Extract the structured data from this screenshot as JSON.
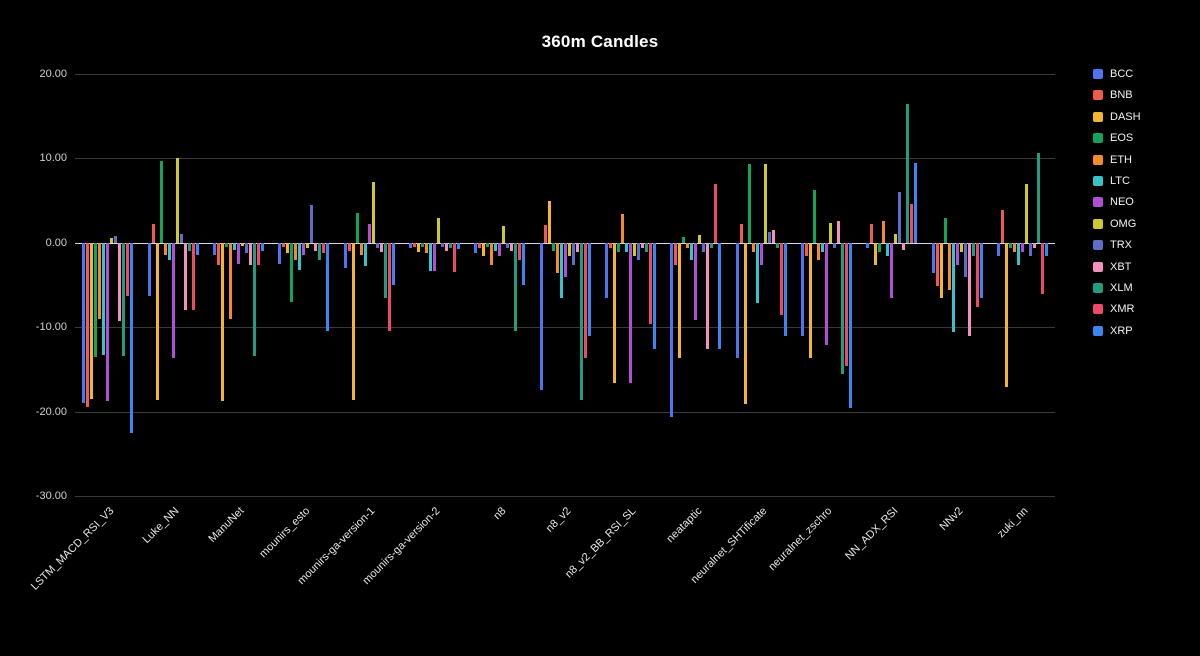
{
  "chart_data": {
    "type": "bar",
    "title": "360m Candles",
    "xlabel": "",
    "ylabel": "",
    "ylim": [
      -30,
      20
    ],
    "yticks": [
      20,
      10,
      0,
      -10,
      -20,
      -30
    ],
    "ytick_labels": [
      "20.00",
      "10.00",
      "0.00",
      "-10.00",
      "-20.00",
      "-30.00"
    ],
    "grid": true,
    "legend_position": "right",
    "background": "#000000",
    "gridline_color": "#3a3a3a",
    "zero_line_color": "#d9d9d9",
    "categories": [
      "LSTM_MACD_RSI_V3",
      "Luke_NN",
      "ManuNet",
      "mounirs_esto",
      "mounirs-ga-version-1",
      "mounirs-ga-version-2",
      "n8",
      "n8_v2",
      "n8_v2_BB_RSI_SL",
      "neataptic",
      "neuralnet_SHTificate",
      "neuralnet_zschro",
      "NN_ADX_RSI",
      "NNv2",
      "zuki_nn"
    ],
    "series": [
      {
        "name": "BCC",
        "color": "#4F74F2",
        "values": [
          -19.0,
          -6.3,
          -1.5,
          -2.5,
          -3.0,
          -0.6,
          -1.2,
          -17.5,
          -6.6,
          -20.6,
          -13.6,
          -11.1,
          -0.6,
          -3.6,
          -1.6
        ]
      },
      {
        "name": "BNB",
        "color": "#EF5B4C",
        "values": [
          -19.5,
          2.2,
          -2.6,
          -0.5,
          -1.0,
          -0.5,
          -0.6,
          2.1,
          -0.6,
          -2.6,
          2.2,
          -1.6,
          2.2,
          -5.1,
          3.9
        ]
      },
      {
        "name": "DASH",
        "color": "#F5B62E",
        "values": [
          -18.5,
          -18.6,
          -18.7,
          -1.2,
          -18.6,
          -1.1,
          -1.6,
          4.9,
          -16.6,
          -13.6,
          -19.1,
          -13.6,
          -2.6,
          -6.6,
          -17.1
        ]
      },
      {
        "name": "EOS",
        "color": "#13A45B",
        "values": [
          -13.5,
          9.7,
          -0.5,
          -7.0,
          3.5,
          -0.5,
          -0.5,
          -1.0,
          -1.1,
          0.7,
          9.4,
          6.3,
          -1.1,
          2.9,
          -0.6
        ]
      },
      {
        "name": "ETH",
        "color": "#F58A2E",
        "values": [
          -9.0,
          -1.5,
          -9.0,
          -2.0,
          -1.5,
          -1.2,
          -2.6,
          -3.6,
          3.4,
          -0.6,
          -1.1,
          -2.1,
          2.6,
          -5.6,
          -1.1
        ]
      },
      {
        "name": "LTC",
        "color": "#36C3C9",
        "values": [
          -13.3,
          -2.0,
          -0.8,
          -3.2,
          -2.7,
          -3.4,
          -1.0,
          -6.6,
          -1.1,
          -2.1,
          -7.1,
          -1.1,
          -1.6,
          -10.6,
          -2.6
        ]
      },
      {
        "name": "NEO",
        "color": "#B14FD6",
        "values": [
          -18.7,
          -13.6,
          -2.5,
          -1.5,
          2.2,
          -3.4,
          -1.6,
          -4.1,
          -16.6,
          -9.1,
          -2.6,
          -12.1,
          -6.6,
          -2.6,
          -1.1
        ]
      },
      {
        "name": "OMG",
        "color": "#CDC92F",
        "values": [
          0.6,
          10.0,
          -0.4,
          -0.6,
          7.2,
          3.0,
          2.0,
          -1.6,
          -1.6,
          0.9,
          9.4,
          2.3,
          1.1,
          -1.1,
          7.0
        ]
      },
      {
        "name": "TRX",
        "color": "#5E6DC9",
        "values": [
          0.8,
          1.0,
          -1.2,
          4.5,
          -0.6,
          -0.5,
          -0.6,
          -2.6,
          -2.1,
          -1.1,
          1.3,
          -0.6,
          6.0,
          -4.1,
          -1.6
        ]
      },
      {
        "name": "XBT",
        "color": "#F291BE",
        "values": [
          -9.3,
          -8.0,
          -2.6,
          -1.0,
          -1.1,
          -1.0,
          -1.0,
          -1.1,
          -0.6,
          -12.6,
          1.5,
          2.6,
          -0.9,
          -11.1,
          -0.6
        ]
      },
      {
        "name": "XLM",
        "color": "#229C7C",
        "values": [
          -13.4,
          -1.0,
          -13.4,
          -2.0,
          -6.5,
          -0.6,
          -10.4,
          -18.6,
          -1.1,
          -0.6,
          -0.6,
          -15.6,
          16.5,
          -1.6,
          10.7
        ]
      },
      {
        "name": "XMR",
        "color": "#ED4A6A",
        "values": [
          -6.3,
          -8.0,
          -2.6,
          -1.2,
          -10.5,
          -3.5,
          -2.0,
          -13.6,
          -9.6,
          7.0,
          -8.6,
          -14.6,
          4.6,
          -7.6,
          -6.1
        ]
      },
      {
        "name": "XRP",
        "color": "#3C86F2",
        "values": [
          -22.5,
          -1.5,
          -1.0,
          -10.5,
          -5.0,
          -0.7,
          -5.0,
          -11.0,
          -12.6,
          -12.6,
          -11.1,
          -19.6,
          9.5,
          -6.6,
          -1.6
        ]
      }
    ]
  }
}
